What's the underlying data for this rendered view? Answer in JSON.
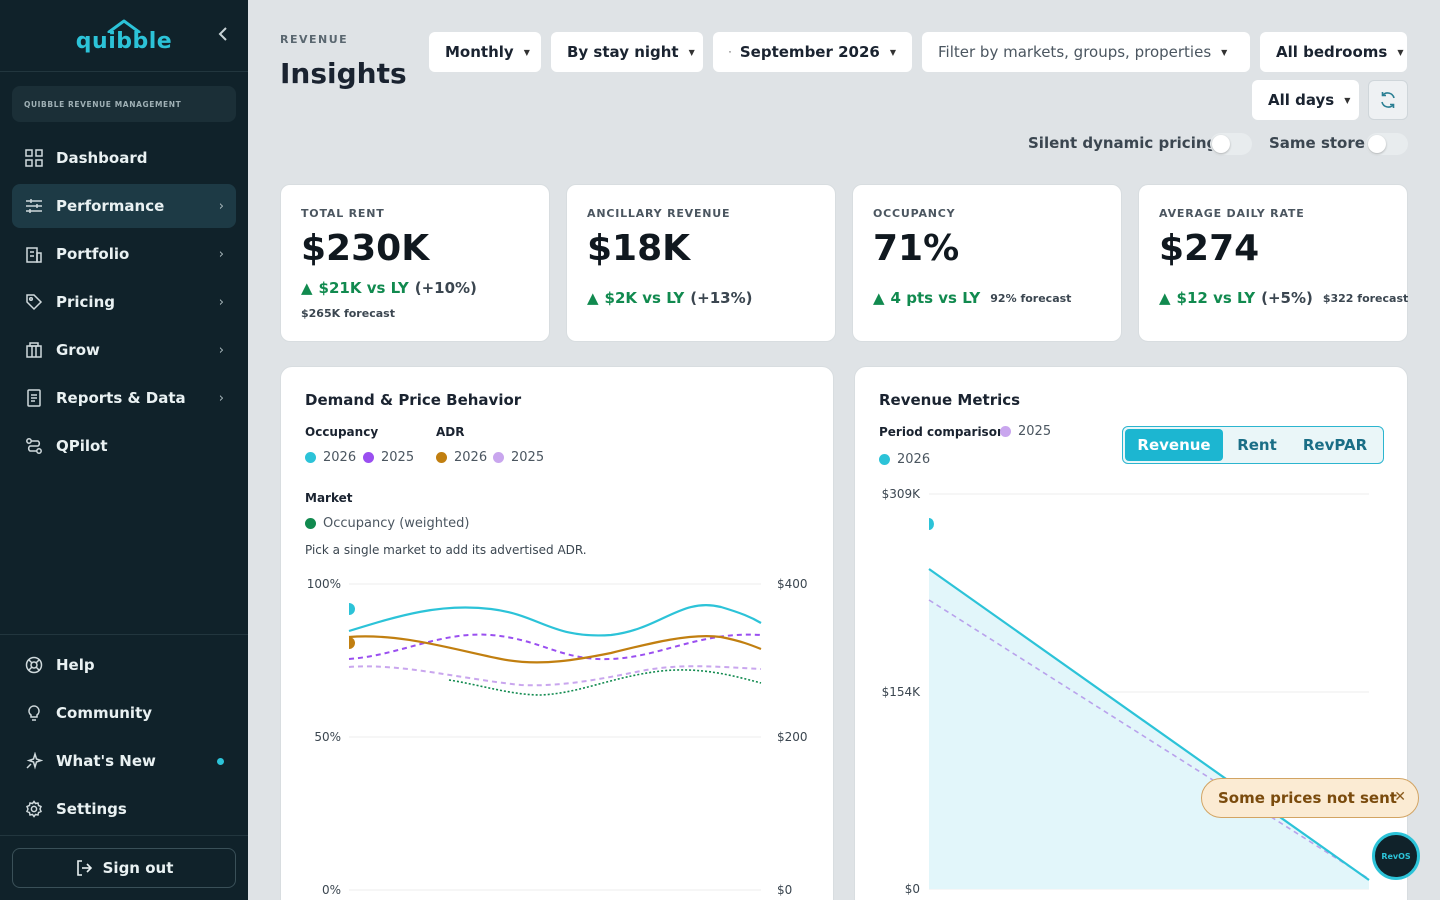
{
  "brand": {
    "logo_text": "quibble",
    "org": "QUIBBLE REVENUE MANAGEMENT",
    "accent": "#2cc3d8"
  },
  "sidebar": {
    "items": [
      {
        "label": "Dashboard",
        "icon": "grid-icon",
        "chevron": false
      },
      {
        "label": "Performance",
        "icon": "sliders-icon",
        "chevron": true,
        "active": true
      },
      {
        "label": "Portfolio",
        "icon": "building-icon",
        "chevron": true
      },
      {
        "label": "Pricing",
        "icon": "tag-icon",
        "chevron": true
      },
      {
        "label": "Grow",
        "icon": "store-icon",
        "chevron": true
      },
      {
        "label": "Reports & Data",
        "icon": "report-icon",
        "chevron": true
      },
      {
        "label": "QPilot",
        "icon": "route-icon",
        "chevron": false
      }
    ],
    "bottom_items": [
      {
        "label": "Help",
        "icon": "lifebuoy-icon"
      },
      {
        "label": "Community",
        "icon": "bulb-icon"
      },
      {
        "label": "What's New",
        "icon": "sparkle-icon",
        "badge_dot": true
      },
      {
        "label": "Settings",
        "icon": "gear-icon"
      }
    ],
    "sign_out": "Sign out"
  },
  "header": {
    "eyebrow": "REVENUE",
    "title": "Insights",
    "filters": {
      "period": "Monthly",
      "basis": "By stay night",
      "month": "September 2026",
      "scope_placeholder": "Filter by markets, groups, properties",
      "bedrooms": "All bedrooms",
      "days": "All days"
    },
    "toggles": {
      "silent_pricing": "Silent dynamic pricing",
      "same_store": "Same store"
    }
  },
  "kpis": [
    {
      "label": "TOTAL RENT",
      "value": "$230K",
      "delta": "$21K vs LY",
      "pct": "(+10%)",
      "forecast": "$265K forecast"
    },
    {
      "label": "ANCILLARY REVENUE",
      "value": "$18K",
      "delta": "$2K vs LY",
      "pct": "(+13%)",
      "forecast": ""
    },
    {
      "label": "OCCUPANCY",
      "value": "71%",
      "delta": "4 pts vs LY",
      "pct": "",
      "forecast": "92% forecast"
    },
    {
      "label": "AVERAGE DAILY RATE",
      "value": "$274",
      "delta": "$12 vs LY",
      "pct": "(+5%)",
      "forecast": "$322 forecast"
    }
  ],
  "demand_card": {
    "title": "Demand & Price Behavior",
    "occupancy_head": "Occupancy",
    "adr_head": "ADR",
    "market_head": "Market",
    "legend": {
      "occ_2026": "2026",
      "occ_2025": "2025",
      "adr_2026": "2026",
      "adr_2025": "2025",
      "market_occ": "Occupancy (weighted)"
    },
    "note": "Pick a single market to add its advertised ADR.",
    "colors": {
      "occ_2026": "#2cc3d8",
      "occ_2025": "#9a4ff0",
      "adr_2026": "#c17f10",
      "adr_2025": "#c9a6ee",
      "market": "#118a4f"
    },
    "left_ticks": [
      "100%",
      "50%",
      "0%"
    ],
    "right_ticks": [
      "$400",
      "$200",
      "$0"
    ]
  },
  "revenue_card": {
    "title": "Revenue Metrics",
    "period_head": "Period comparison",
    "legend_2025": "2025",
    "legend_2026": "2026",
    "tabs": [
      "Revenue",
      "Rent",
      "RevPAR"
    ],
    "active_tab": "Revenue",
    "y_ticks": [
      "$309K",
      "$154K",
      "$0"
    ],
    "colors": {
      "y2026": "#2cc3d8",
      "y2025": "#b9a2ec"
    }
  },
  "toast": {
    "text": "Some prices not sent",
    "close": "✕"
  },
  "fab": {
    "label": "RevOS"
  }
}
